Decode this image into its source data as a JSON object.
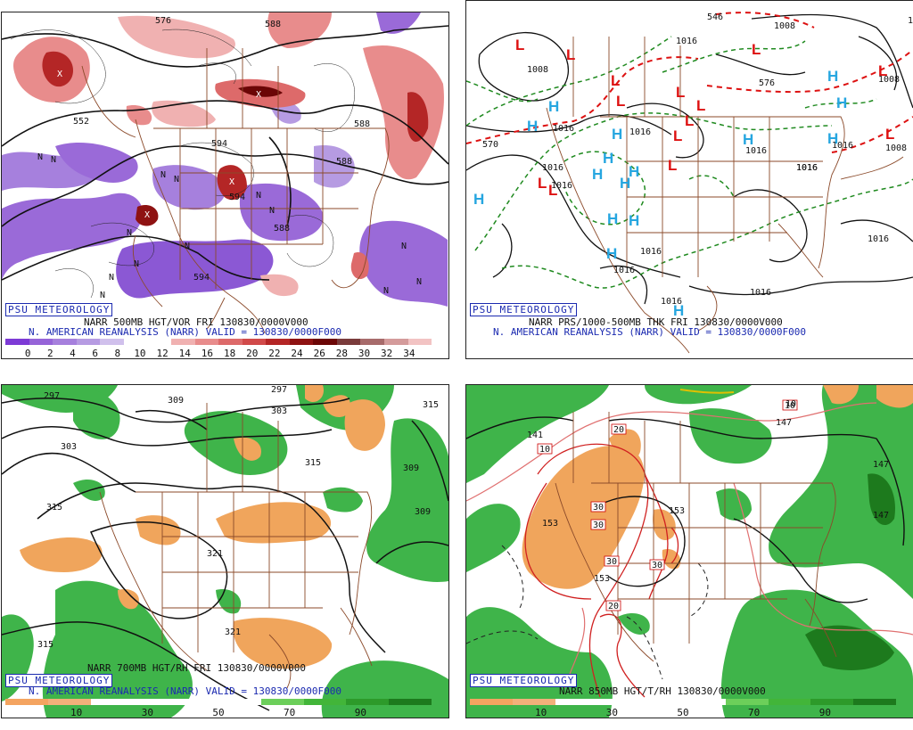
{
  "panels": [
    {
      "id": "p1",
      "badge": "PSU METEOROLOGY",
      "caption_line1": "NARR 500MB HGT/VOR FRI 130830/0000V000",
      "caption_line2": "N. AMERICAN REANALYSIS (NARR) VALID = 130830/0000F000",
      "colorbar_ticks": [
        "0",
        "2",
        "4",
        "6",
        "8",
        "10",
        "12",
        "14",
        "16",
        "18",
        "20",
        "22",
        "24",
        "26",
        "28",
        "30",
        "32",
        "34"
      ],
      "contour_labels": [
        "576",
        "588",
        "588",
        "552",
        "594",
        "594",
        "594",
        "588",
        "588"
      ],
      "n_labels": [
        "N",
        "N",
        "N",
        "N",
        "N",
        "N",
        "N",
        "N",
        "N",
        "N",
        "N",
        "N",
        "N",
        "N"
      ],
      "x_labels": [
        "X",
        "X",
        "X",
        "X"
      ]
    },
    {
      "id": "p2",
      "badge": "PSU METEOROLOGY",
      "caption_line1": "NARR PRS/1000-500MB THK FRI 130830/0000V000",
      "caption_line2": "N. AMERICAN REANALYSIS (NARR) VALID = 130830/0000F000",
      "contour_labels": [
        "546",
        "1008",
        "1016",
        "1008",
        "576",
        "570",
        "1016",
        "1016",
        "1016",
        "1016",
        "1016",
        "1016",
        "1016",
        "1016",
        "1016",
        "1016",
        "1008",
        "1008",
        "1016",
        "1016",
        "1016",
        "1016"
      ],
      "highs": [
        "H",
        "H",
        "H",
        "H",
        "H",
        "H",
        "H",
        "H",
        "H",
        "H",
        "H",
        "H",
        "H",
        "H",
        "H",
        "H"
      ],
      "lows": [
        "L",
        "L",
        "L",
        "L",
        "L",
        "L",
        "L",
        "L",
        "L",
        "L",
        "L",
        "L",
        "L",
        "L"
      ]
    },
    {
      "id": "p3",
      "badge": "PSU METEOROLOGY",
      "caption_line1": "NARR 700MB HGT/RH FRI 130830/0000V000",
      "caption_line2": "N. AMERICAN REANALYSIS (NARR) VALID = 130830/0000F000",
      "colorbar_ticks": [
        "10",
        "30",
        "50",
        "70",
        "90"
      ],
      "contour_labels": [
        "297",
        "309",
        "297",
        "303",
        "303",
        "315",
        "315",
        "315",
        "309",
        "309",
        "321",
        "321",
        "315"
      ]
    },
    {
      "id": "p4",
      "caption_line1": "NARR 850MB HGT/T/RH 130830/0000V000",
      "colorbar_ticks": [
        "10",
        "30",
        "50",
        "70",
        "90"
      ],
      "contour_labels": [
        "141",
        "147",
        "153",
        "153",
        "153",
        "147",
        "147",
        "153",
        "141",
        "153",
        "141",
        "147"
      ],
      "boxed_labels": [
        "20",
        "10",
        "10",
        "30",
        "30",
        "30",
        "30",
        "20",
        "10"
      ],
      "badge": "PSU METEOROLOGY"
    }
  ],
  "colors": {
    "vor_scale": [
      "#7d3ad6",
      "#9664d8",
      "#a680dd",
      "#b69be2",
      "#d0c0ec",
      "#ffffff",
      "#ffffff",
      "#f0b1b1",
      "#e88c8c",
      "#dd6a6a",
      "#d14a4a",
      "#b42626",
      "#8e1212",
      "#6b0606",
      "#7a3b3b",
      "#a76b6b",
      "#d49b9b",
      "#f2c3c3"
    ],
    "rh_scale": [
      "#f4a460",
      "#f2b07a",
      "#ffffff",
      "#ffffff",
      "#ffffff",
      "#ffffff",
      "#6ccf5a",
      "#42b539",
      "#2d9a2a",
      "#1d7a1d"
    ],
    "state_lines": "#8b4a2a",
    "height_contour": "#111111",
    "thickness_red": "#dd1111",
    "thickness_green": "#1f8a1f",
    "high_blue": "#26a6e0",
    "low_red": "#dd1111",
    "badge_blue": "#1b2ab0",
    "rh_moist": "#3fb44a",
    "rh_dry": "#f0a55c"
  }
}
